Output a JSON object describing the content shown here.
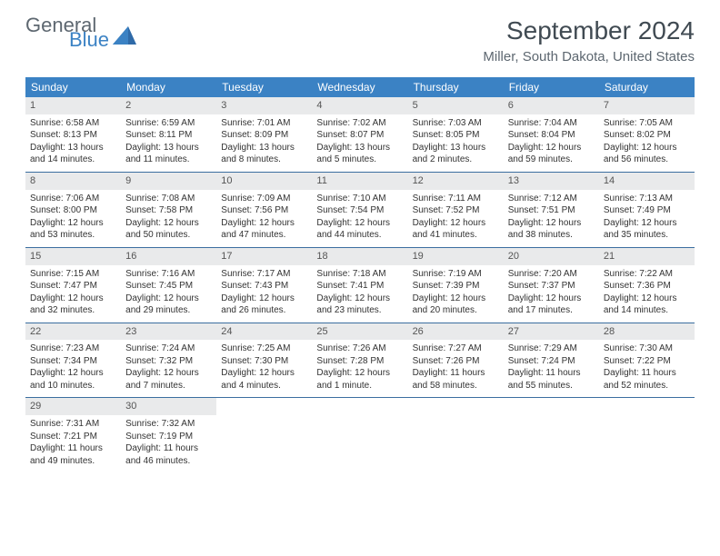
{
  "brand": {
    "part1": "General",
    "part2": "Blue"
  },
  "title": "September 2024",
  "location": "Miller, South Dakota, United States",
  "colors": {
    "header_bg": "#3b82c4",
    "daynum_bg": "#e9eaeb",
    "week_divider": "#3b6ea0",
    "text_dark": "#404a52",
    "text_mid": "#5d6770"
  },
  "weekdays": [
    "Sunday",
    "Monday",
    "Tuesday",
    "Wednesday",
    "Thursday",
    "Friday",
    "Saturday"
  ],
  "weeks": [
    [
      {
        "n": "1",
        "sr": "6:58 AM",
        "ss": "8:13 PM",
        "dl": "13 hours and 14 minutes."
      },
      {
        "n": "2",
        "sr": "6:59 AM",
        "ss": "8:11 PM",
        "dl": "13 hours and 11 minutes."
      },
      {
        "n": "3",
        "sr": "7:01 AM",
        "ss": "8:09 PM",
        "dl": "13 hours and 8 minutes."
      },
      {
        "n": "4",
        "sr": "7:02 AM",
        "ss": "8:07 PM",
        "dl": "13 hours and 5 minutes."
      },
      {
        "n": "5",
        "sr": "7:03 AM",
        "ss": "8:05 PM",
        "dl": "13 hours and 2 minutes."
      },
      {
        "n": "6",
        "sr": "7:04 AM",
        "ss": "8:04 PM",
        "dl": "12 hours and 59 minutes."
      },
      {
        "n": "7",
        "sr": "7:05 AM",
        "ss": "8:02 PM",
        "dl": "12 hours and 56 minutes."
      }
    ],
    [
      {
        "n": "8",
        "sr": "7:06 AM",
        "ss": "8:00 PM",
        "dl": "12 hours and 53 minutes."
      },
      {
        "n": "9",
        "sr": "7:08 AM",
        "ss": "7:58 PM",
        "dl": "12 hours and 50 minutes."
      },
      {
        "n": "10",
        "sr": "7:09 AM",
        "ss": "7:56 PM",
        "dl": "12 hours and 47 minutes."
      },
      {
        "n": "11",
        "sr": "7:10 AM",
        "ss": "7:54 PM",
        "dl": "12 hours and 44 minutes."
      },
      {
        "n": "12",
        "sr": "7:11 AM",
        "ss": "7:52 PM",
        "dl": "12 hours and 41 minutes."
      },
      {
        "n": "13",
        "sr": "7:12 AM",
        "ss": "7:51 PM",
        "dl": "12 hours and 38 minutes."
      },
      {
        "n": "14",
        "sr": "7:13 AM",
        "ss": "7:49 PM",
        "dl": "12 hours and 35 minutes."
      }
    ],
    [
      {
        "n": "15",
        "sr": "7:15 AM",
        "ss": "7:47 PM",
        "dl": "12 hours and 32 minutes."
      },
      {
        "n": "16",
        "sr": "7:16 AM",
        "ss": "7:45 PM",
        "dl": "12 hours and 29 minutes."
      },
      {
        "n": "17",
        "sr": "7:17 AM",
        "ss": "7:43 PM",
        "dl": "12 hours and 26 minutes."
      },
      {
        "n": "18",
        "sr": "7:18 AM",
        "ss": "7:41 PM",
        "dl": "12 hours and 23 minutes."
      },
      {
        "n": "19",
        "sr": "7:19 AM",
        "ss": "7:39 PM",
        "dl": "12 hours and 20 minutes."
      },
      {
        "n": "20",
        "sr": "7:20 AM",
        "ss": "7:37 PM",
        "dl": "12 hours and 17 minutes."
      },
      {
        "n": "21",
        "sr": "7:22 AM",
        "ss": "7:36 PM",
        "dl": "12 hours and 14 minutes."
      }
    ],
    [
      {
        "n": "22",
        "sr": "7:23 AM",
        "ss": "7:34 PM",
        "dl": "12 hours and 10 minutes."
      },
      {
        "n": "23",
        "sr": "7:24 AM",
        "ss": "7:32 PM",
        "dl": "12 hours and 7 minutes."
      },
      {
        "n": "24",
        "sr": "7:25 AM",
        "ss": "7:30 PM",
        "dl": "12 hours and 4 minutes."
      },
      {
        "n": "25",
        "sr": "7:26 AM",
        "ss": "7:28 PM",
        "dl": "12 hours and 1 minute."
      },
      {
        "n": "26",
        "sr": "7:27 AM",
        "ss": "7:26 PM",
        "dl": "11 hours and 58 minutes."
      },
      {
        "n": "27",
        "sr": "7:29 AM",
        "ss": "7:24 PM",
        "dl": "11 hours and 55 minutes."
      },
      {
        "n": "28",
        "sr": "7:30 AM",
        "ss": "7:22 PM",
        "dl": "11 hours and 52 minutes."
      }
    ],
    [
      {
        "n": "29",
        "sr": "7:31 AM",
        "ss": "7:21 PM",
        "dl": "11 hours and 49 minutes."
      },
      {
        "n": "30",
        "sr": "7:32 AM",
        "ss": "7:19 PM",
        "dl": "11 hours and 46 minutes."
      },
      null,
      null,
      null,
      null,
      null
    ]
  ],
  "labels": {
    "sunrise": "Sunrise: ",
    "sunset": "Sunset: ",
    "daylight": "Daylight: "
  }
}
